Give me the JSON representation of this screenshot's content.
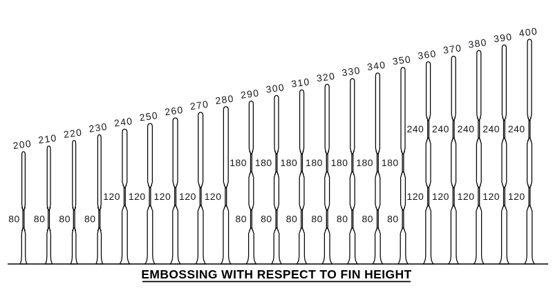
{
  "title": {
    "text": "EMBOSSING WITH RESPECT TO FIN HEIGHT"
  },
  "colors": {
    "line": "#000000",
    "label_text": "#15151e",
    "background": "#ffffff"
  },
  "diagram": {
    "fins": [
      {
        "height_mm": 200,
        "height_label": "200",
        "embossing_mm": [
          80
        ],
        "embossing_labels": [
          "80"
        ]
      },
      {
        "height_mm": 210,
        "height_label": "210",
        "embossing_mm": [
          80
        ],
        "embossing_labels": [
          "80"
        ]
      },
      {
        "height_mm": 220,
        "height_label": "220",
        "embossing_mm": [
          80
        ],
        "embossing_labels": [
          "80"
        ]
      },
      {
        "height_mm": 230,
        "height_label": "230",
        "embossing_mm": [
          80
        ],
        "embossing_labels": [
          "80"
        ]
      },
      {
        "height_mm": 240,
        "height_label": "240",
        "embossing_mm": [
          120
        ],
        "embossing_labels": [
          "120"
        ]
      },
      {
        "height_mm": 250,
        "height_label": "250",
        "embossing_mm": [
          120
        ],
        "embossing_labels": [
          "120"
        ]
      },
      {
        "height_mm": 260,
        "height_label": "260",
        "embossing_mm": [
          120
        ],
        "embossing_labels": [
          "120"
        ]
      },
      {
        "height_mm": 270,
        "height_label": "270",
        "embossing_mm": [
          120
        ],
        "embossing_labels": [
          "120"
        ]
      },
      {
        "height_mm": 280,
        "height_label": "280",
        "embossing_mm": [
          120
        ],
        "embossing_labels": [
          "120"
        ]
      },
      {
        "height_mm": 290,
        "height_label": "290",
        "embossing_mm": [
          80,
          180
        ],
        "embossing_labels": [
          "80",
          "180"
        ]
      },
      {
        "height_mm": 300,
        "height_label": "300",
        "embossing_mm": [
          80,
          180
        ],
        "embossing_labels": [
          "80",
          "180"
        ]
      },
      {
        "height_mm": 310,
        "height_label": "310",
        "embossing_mm": [
          80,
          180
        ],
        "embossing_labels": [
          "80",
          "180"
        ]
      },
      {
        "height_mm": 320,
        "height_label": "320",
        "embossing_mm": [
          80,
          180
        ],
        "embossing_labels": [
          "80",
          "180"
        ]
      },
      {
        "height_mm": 330,
        "height_label": "330",
        "embossing_mm": [
          80,
          180
        ],
        "embossing_labels": [
          "80",
          "180"
        ]
      },
      {
        "height_mm": 340,
        "height_label": "340",
        "embossing_mm": [
          80,
          180
        ],
        "embossing_labels": [
          "80",
          "180"
        ]
      },
      {
        "height_mm": 350,
        "height_label": "350",
        "embossing_mm": [
          80,
          180
        ],
        "embossing_labels": [
          "80",
          "180"
        ]
      },
      {
        "height_mm": 360,
        "height_label": "360",
        "embossing_mm": [
          120,
          240
        ],
        "embossing_labels": [
          "120",
          "240"
        ]
      },
      {
        "height_mm": 370,
        "height_label": "370",
        "embossing_mm": [
          120,
          240
        ],
        "embossing_labels": [
          "120",
          "240"
        ]
      },
      {
        "height_mm": 380,
        "height_label": "380",
        "embossing_mm": [
          120,
          240
        ],
        "embossing_labels": [
          "120",
          "240"
        ]
      },
      {
        "height_mm": 390,
        "height_label": "390",
        "embossing_mm": [
          120,
          240
        ],
        "embossing_labels": [
          "120",
          "240"
        ]
      },
      {
        "height_mm": 400,
        "height_label": "400",
        "embossing_mm": [
          120,
          240
        ],
        "embossing_labels": [
          "120",
          "240"
        ]
      }
    ]
  }
}
